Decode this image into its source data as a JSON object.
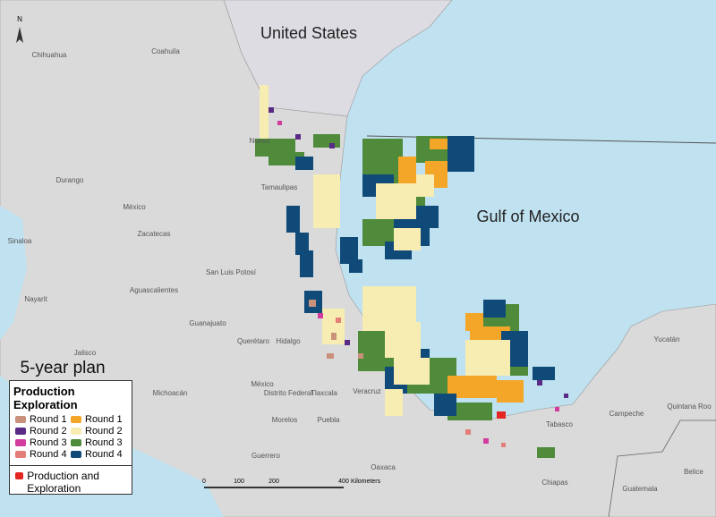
{
  "labels": {
    "united_states": "United States",
    "gulf": "Gulf of Mexico",
    "plan": "5-year plan",
    "north": "N"
  },
  "states": [
    "Chihuahua",
    "Coahuila",
    "Nuevo",
    "Durango",
    "México",
    "Tamaulipas",
    "Zacatecas",
    "Sinaloa",
    "San Luis Potosí",
    "Aguascalientes",
    "Nayarit",
    "Guanajuato",
    "Querétaro",
    "Hidalgo",
    "Jalisco",
    "Michoacán",
    "México",
    "Distrito Federal",
    "Tlaxcala",
    "Veracruz",
    "Morelos",
    "Puebla",
    "Guerrero",
    "Oaxaca",
    "Tabasco",
    "Campeche",
    "Yucatán",
    "Quintana Roo",
    "Chiapas",
    "Guatemala",
    "Belice"
  ],
  "legend": {
    "production": {
      "title": "Production",
      "items": [
        {
          "name": "Round 1",
          "color": "#c9917c"
        },
        {
          "name": "Round 2",
          "color": "#5a2a86"
        },
        {
          "name": "Round 3",
          "color": "#d23c9e"
        },
        {
          "name": "Round 4",
          "color": "#e37f78"
        }
      ]
    },
    "exploration": {
      "title": "Exploration",
      "items": [
        {
          "name": "Round 1",
          "color": "#f4a628"
        },
        {
          "name": "Round 2",
          "color": "#f7edb2"
        },
        {
          "name": "Round 3",
          "color": "#4f8b3b"
        },
        {
          "name": "Round 4",
          "color": "#0f4a78"
        }
      ]
    },
    "combined": {
      "name": "Production and Exploration",
      "color": "#e3261f"
    }
  },
  "scale_bar": {
    "ticks": [
      0,
      100,
      200,
      400
    ],
    "unit": "Kilometers"
  }
}
